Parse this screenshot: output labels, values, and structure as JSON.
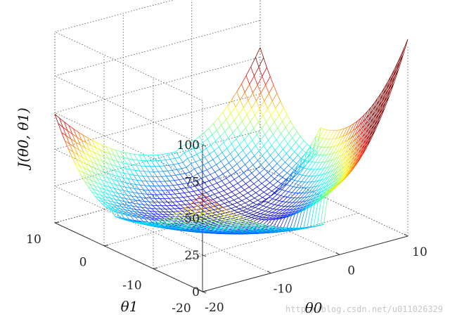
{
  "chart_data": {
    "type": "surface",
    "zlabel": "J(θ0, θ1)",
    "xlabel": "θ0",
    "ylabel": "θ1",
    "x_ticks": [
      "-20",
      "-10",
      "0",
      "10"
    ],
    "y_ticks": [
      "-20",
      "-10",
      "0",
      "10"
    ],
    "z_ticks": [
      "0",
      "25",
      "50",
      "75",
      "100"
    ],
    "xlim": [
      -20,
      10
    ],
    "ylim": [
      -20,
      10
    ],
    "zlim": [
      0,
      100
    ],
    "colormap": "jet",
    "grid": true,
    "surface_corner_values": {
      "x_min_y_min": 45,
      "x_max_y_min": 90,
      "x_min_y_max": 50,
      "x_max_y_max": 55
    },
    "minimum_approx": {
      "x": -2,
      "y": -2,
      "z": 2
    }
  },
  "watermark": "http://blog.csdn.net/u011026329"
}
